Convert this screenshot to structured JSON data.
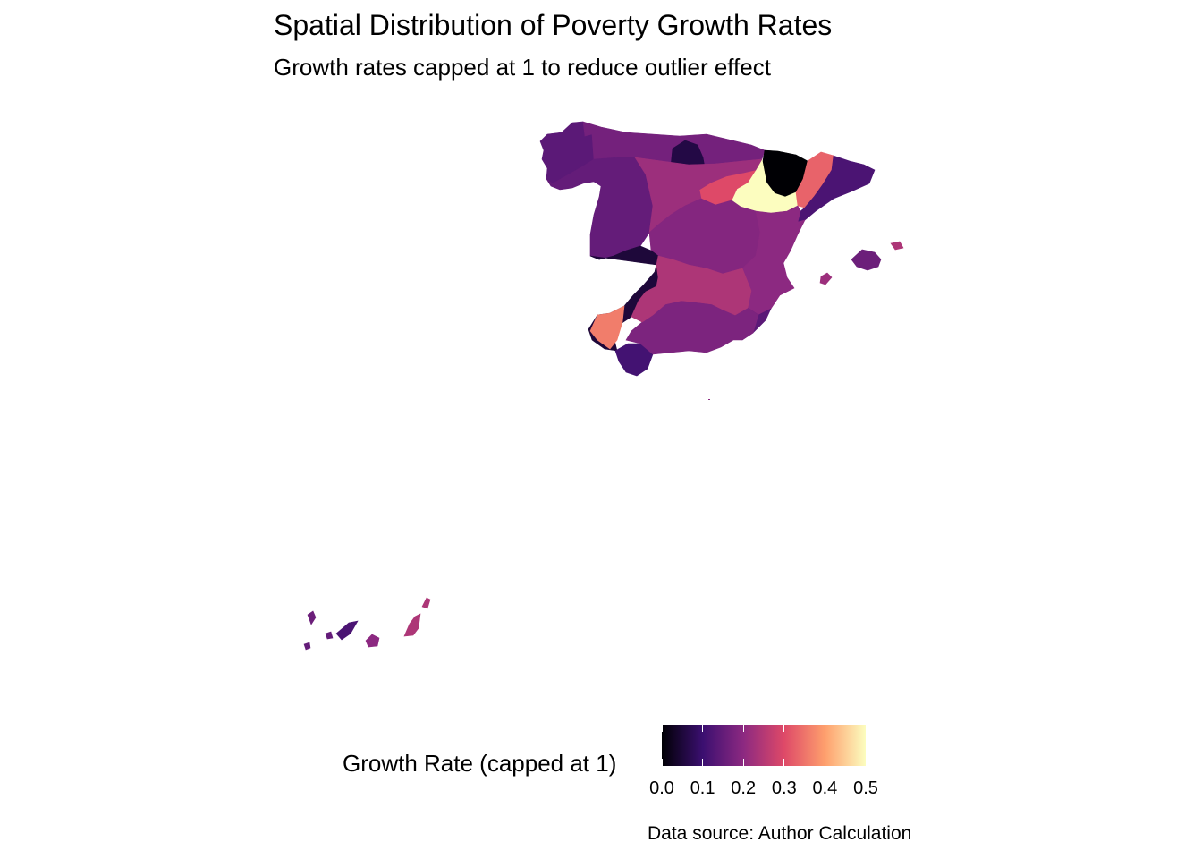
{
  "title": "Spatial Distribution of Poverty Growth Rates",
  "subtitle": "Growth rates capped at 1 to reduce outlier effect",
  "caption": "Data source: Author Calculation",
  "legend": {
    "title": "Growth Rate (capped at 1)",
    "ticks": [
      "0.0",
      "0.1",
      "0.2",
      "0.3",
      "0.4",
      "0.5"
    ],
    "range": [
      0,
      0.5
    ],
    "palette": "magma",
    "colors": [
      "#000004",
      "#3b0f70",
      "#8c2981",
      "#de4968",
      "#fe9f6d",
      "#fcfdbf"
    ]
  },
  "chart_data": {
    "type": "choropleth",
    "region": "Spain provinces",
    "fill_variable": "growth rate (capped at 1)",
    "color_scale": {
      "type": "continuous",
      "palette": "magma",
      "limits": [
        0,
        0.5
      ]
    },
    "areas": [
      {
        "area": "north-west",
        "value": 0.14
      },
      {
        "area": "north coast",
        "value": 0.17
      },
      {
        "area": "north central",
        "value": 0.06
      },
      {
        "area": "north-east high",
        "value": 0.0
      },
      {
        "area": "north-east central",
        "value": 0.5
      },
      {
        "area": "north-east inland",
        "value": 0.3
      },
      {
        "area": "north-east coast",
        "value": 0.33
      },
      {
        "area": "far north-east",
        "value": 0.12
      },
      {
        "area": "west",
        "value": 0.15
      },
      {
        "area": "centre-west",
        "value": 0.22
      },
      {
        "area": "centre",
        "value": 0.19
      },
      {
        "area": "centre-east",
        "value": 0.2
      },
      {
        "area": "east coast",
        "value": 0.14
      },
      {
        "area": "south-west",
        "value": 0.05
      },
      {
        "area": "south coast",
        "value": 0.36
      },
      {
        "area": "south",
        "value": 0.11
      },
      {
        "area": "south-east",
        "value": 0.18
      },
      {
        "area": "east islands",
        "value": 0.24
      },
      {
        "area": "south-west islands west",
        "value": 0.16
      },
      {
        "area": "south-west islands east",
        "value": 0.24
      }
    ]
  }
}
